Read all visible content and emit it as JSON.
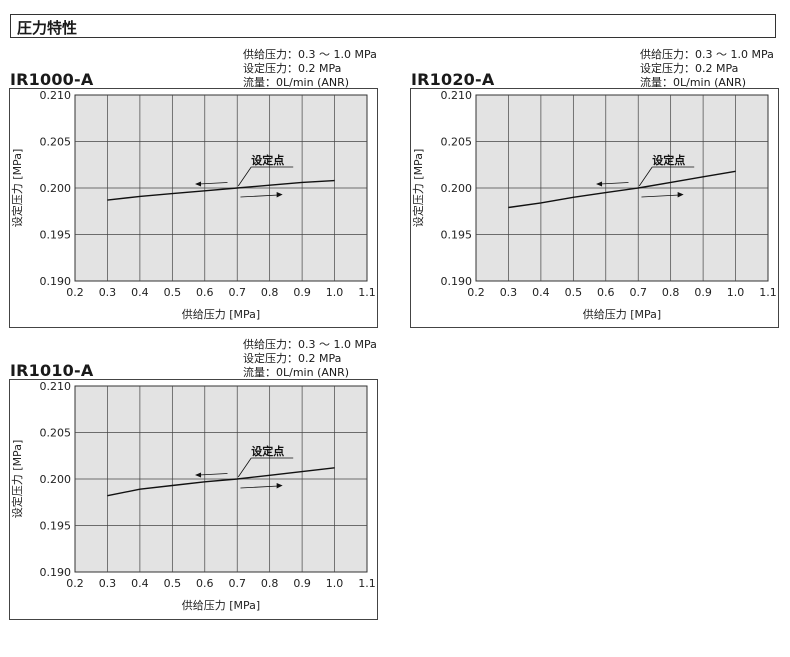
{
  "section_title": "圧力特性",
  "chart_data": [
    {
      "type": "line",
      "model": "IR1000-A",
      "conditions": [
        "供给压力：0.3 ～ 1.0 MPa",
        "设定压力：0.2 MPa",
        "流量：0L/min (ANR)"
      ],
      "xlabel": "供给压力 [MPa]",
      "ylabel": "设定压力 [MPa]",
      "xlim": [
        0.2,
        1.1
      ],
      "ylim": [
        0.19,
        0.21
      ],
      "x_ticks": [
        "0.2",
        "0.3",
        "0.4",
        "0.5",
        "0.6",
        "0.7",
        "0.8",
        "0.9",
        "1.0",
        "1.1"
      ],
      "y_ticks": [
        "0.210",
        "0.205",
        "0.200",
        "0.195",
        "0.190"
      ],
      "grid": true,
      "annotation": "设定点",
      "set_point": {
        "x": 0.7,
        "y": 0.2
      },
      "series": [
        {
          "x": [
            0.3,
            0.4,
            0.5,
            0.6,
            0.7,
            0.8,
            0.9,
            1.0
          ],
          "y": [
            0.1987,
            0.1991,
            0.1994,
            0.1997,
            0.2,
            0.2003,
            0.2006,
            0.2008
          ]
        }
      ]
    },
    {
      "type": "line",
      "model": "IR1020-A",
      "conditions": [
        "供给压力：0.3 ～ 1.0 MPa",
        "设定压力：0.2 MPa",
        "流量：0L/min (ANR)"
      ],
      "xlabel": "供给压力 [MPa]",
      "ylabel": "设定压力 [MPa]",
      "xlim": [
        0.2,
        1.1
      ],
      "ylim": [
        0.19,
        0.21
      ],
      "x_ticks": [
        "0.2",
        "0.3",
        "0.4",
        "0.5",
        "0.6",
        "0.7",
        "0.8",
        "0.9",
        "1.0",
        "1.1"
      ],
      "y_ticks": [
        "0.210",
        "0.205",
        "0.200",
        "0.195",
        "0.190"
      ],
      "grid": true,
      "annotation": "设定点",
      "set_point": {
        "x": 0.7,
        "y": 0.2
      },
      "series": [
        {
          "x": [
            0.3,
            0.4,
            0.5,
            0.6,
            0.7,
            0.8,
            0.9,
            1.0
          ],
          "y": [
            0.1979,
            0.1984,
            0.199,
            0.1995,
            0.2,
            0.2006,
            0.2012,
            0.2018
          ]
        }
      ]
    },
    {
      "type": "line",
      "model": "IR1010-A",
      "conditions": [
        "供给压力：0.3 ～ 1.0 MPa",
        "设定压力：0.2 MPa",
        "流量：0L/min (ANR)"
      ],
      "xlabel": "供给压力 [MPa]",
      "ylabel": "设定压力 [MPa]",
      "xlim": [
        0.2,
        1.1
      ],
      "ylim": [
        0.19,
        0.21
      ],
      "x_ticks": [
        "0.2",
        "0.3",
        "0.4",
        "0.5",
        "0.6",
        "0.7",
        "0.8",
        "0.9",
        "1.0",
        "1.1"
      ],
      "y_ticks": [
        "0.210",
        "0.205",
        "0.200",
        "0.195",
        "0.190"
      ],
      "grid": true,
      "annotation": "设定点",
      "set_point": {
        "x": 0.7,
        "y": 0.2
      },
      "series": [
        {
          "x": [
            0.3,
            0.4,
            0.5,
            0.6,
            0.7,
            0.8,
            0.9,
            1.0
          ],
          "y": [
            0.1982,
            0.1989,
            0.1993,
            0.1997,
            0.2,
            0.2004,
            0.2008,
            0.2012
          ]
        }
      ]
    }
  ]
}
